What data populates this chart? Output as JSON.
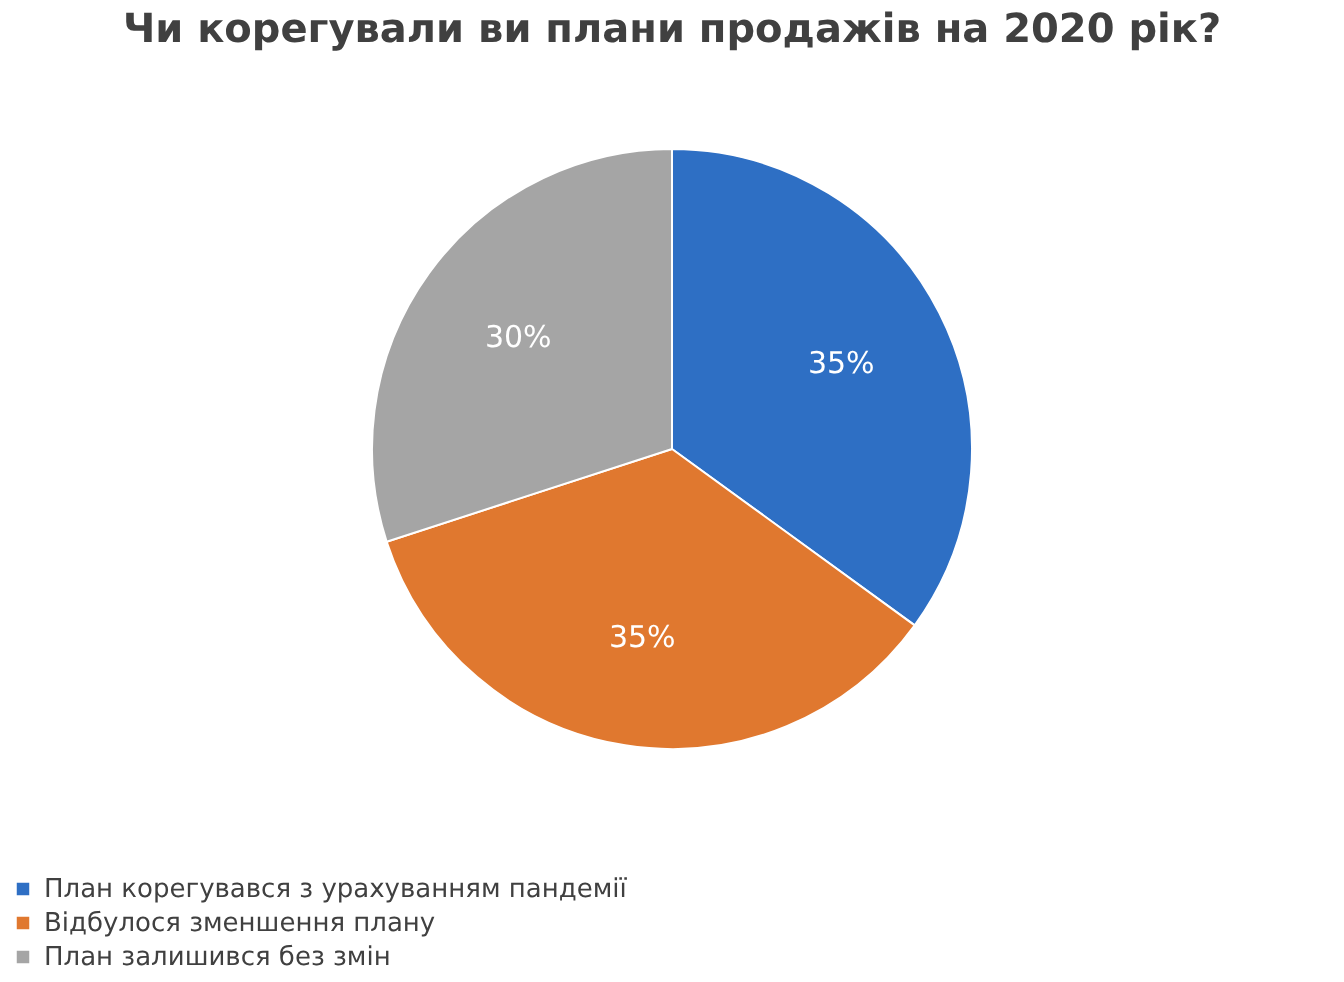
{
  "chart_data": {
    "type": "pie",
    "title": "Чи корегували ви плани продажів на 2020 рік?",
    "categories": [
      "План корегувався з урахуванням пандемії",
      "Відбулося зменшення плану",
      "План залишився без змін"
    ],
    "values": [
      35,
      35,
      30
    ],
    "colors": [
      "#2e6fc4",
      "#e0782f",
      "#a5a5a5"
    ],
    "value_labels": [
      "35%",
      "35%",
      "30%"
    ],
    "legend": "bottom"
  }
}
